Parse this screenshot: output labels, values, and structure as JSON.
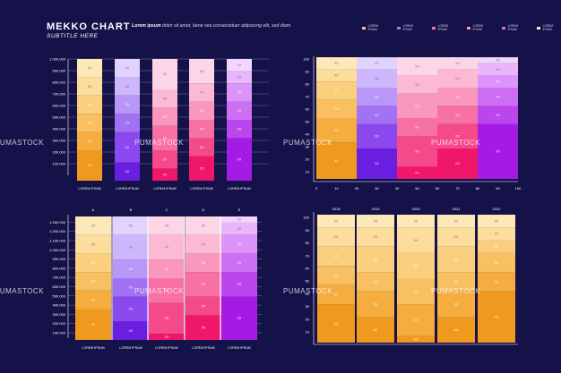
{
  "header": {
    "title": "MEKKO CHART",
    "subtitle": "SUBTITLE HERE",
    "desc_lead": "Lorem ipsum",
    "desc_rest": "dolor sit amet, bene sea consectetuer adipiscing elit, sed diam.",
    "legend": [
      "LOREM IPSUM",
      "LOREM IPSUM",
      "LOREM IPSUM",
      "LOREM IPSUM",
      "LOREM IPSUM",
      "LOREM IPSUM"
    ]
  },
  "watermark": "PUMASTOCK",
  "colors": {
    "background": "#15124a",
    "orange": [
      "#ef9a1e",
      "#f4ad3e",
      "#f8c060",
      "#fad07e",
      "#fcdd9b",
      "#fde8b8"
    ],
    "purple": [
      "#6a1fe0",
      "#8a48ee",
      "#a172f4",
      "#b997f8",
      "#cdb6fb",
      "#e1d3fd"
    ],
    "pink": [
      "#f0166a",
      "#f54a8a",
      "#f871a4",
      "#fa97bd",
      "#fcb9d3",
      "#fdd6e6"
    ],
    "magenta": [
      "#a61ae6",
      "#bb46ee",
      "#cd6ff4",
      "#dc94f8",
      "#e9b6fb",
      "#f3d6fd"
    ]
  },
  "chart_data": [
    {
      "type": "bar",
      "variant": "stacked",
      "categories": [
        "LOREM IPSUM",
        "LOREM IPSUM",
        "LOREM IPSUM",
        "LOREM IPSUM",
        "LOREM IPSUM"
      ],
      "yticks": [
        "100.000",
        "200.000",
        "300.000",
        "400.000",
        "500.000",
        "600.000",
        "700.000",
        "800.000",
        "900.000",
        "1.000.000"
      ],
      "ylim": [
        0,
        1000000
      ],
      "segment_label": "XX",
      "bars": [
        {
          "palette": "orange",
          "segments": [
            250000,
            150000,
            150000,
            150000,
            150000,
            150000
          ]
        },
        {
          "palette": "purple",
          "segments": [
            150000,
            250000,
            150000,
            150000,
            150000,
            150000
          ]
        },
        {
          "palette": "pink",
          "segments": [
            100000,
            150000,
            200000,
            150000,
            150000,
            250000
          ]
        },
        {
          "palette": "pink",
          "segments": [
            200000,
            150000,
            150000,
            150000,
            150000,
            200000
          ]
        },
        {
          "palette": "magenta",
          "segments": [
            350000,
            150000,
            150000,
            150000,
            100000,
            100000
          ]
        }
      ]
    },
    {
      "type": "bar",
      "variant": "mekko",
      "xticks": [
        "0",
        "10",
        "20",
        "30",
        "40",
        "50",
        "60",
        "70",
        "80",
        "90",
        "100"
      ],
      "yticks": [
        "10",
        "20",
        "30",
        "40",
        "50",
        "60",
        "70",
        "80",
        "90",
        "100"
      ],
      "segment_label": "XX",
      "columns": [
        {
          "palette": "orange",
          "x0": 0,
          "x1": 20,
          "segments": [
            30,
            20,
            15,
            15,
            10,
            10
          ]
        },
        {
          "palette": "purple",
          "x0": 20,
          "x1": 40,
          "segments": [
            25,
            20,
            15,
            15,
            15,
            10
          ]
        },
        {
          "palette": "pink",
          "x0": 40,
          "x1": 60,
          "segments": [
            10,
            25,
            15,
            20,
            15,
            15
          ]
        },
        {
          "palette": "pink",
          "x0": 60,
          "x1": 80,
          "segments": [
            25,
            20,
            15,
            15,
            15,
            10
          ]
        },
        {
          "palette": "magenta",
          "x0": 80,
          "x1": 100,
          "segments": [
            45,
            15,
            15,
            10,
            10,
            5
          ]
        }
      ]
    },
    {
      "type": "bar",
      "variant": "mekko-grouped",
      "top_labels": [
        "A",
        "B",
        "C",
        "D",
        "E"
      ],
      "categories": [
        "LOREM IPSUM",
        "LOREM IPSUM",
        "LOREM IPSUM",
        "LOREM IPSUM",
        "LOREM IPSUM"
      ],
      "yticks": [
        "100.000",
        "200.000",
        "300.000",
        "400.000",
        "500.000",
        "600.000",
        "700.000",
        "800.000",
        "900.000",
        "1.000.000",
        "1.100.000",
        "1.200.000",
        "1.300.000"
      ],
      "segment_label": "XX",
      "columns": [
        {
          "palette": "orange",
          "segments": [
            25,
            15,
            15,
            15,
            15,
            15
          ]
        },
        {
          "palette": "purple",
          "segments": [
            15,
            20,
            15,
            15,
            20,
            15
          ]
        },
        {
          "palette": "pink",
          "segments": [
            5,
            25,
            20,
            15,
            20,
            15
          ]
        },
        {
          "palette": "pink",
          "segments": [
            20,
            15,
            20,
            15,
            15,
            15
          ]
        },
        {
          "palette": "magenta",
          "segments": [
            35,
            20,
            15,
            15,
            10,
            5
          ]
        }
      ]
    },
    {
      "type": "bar",
      "variant": "stacked-percent",
      "top_labels": [
        "2018",
        "2019",
        "2020",
        "2021",
        "2022"
      ],
      "yticks": [
        "10",
        "20",
        "30",
        "40",
        "50",
        "60",
        "70",
        "80",
        "90",
        "100"
      ],
      "segment_label": "XX",
      "columns": [
        {
          "palette": "orange",
          "segments": [
            30,
            15,
            15,
            15,
            15,
            10
          ]
        },
        {
          "palette": "orange",
          "segments": [
            20,
            20,
            15,
            20,
            15,
            10
          ]
        },
        {
          "palette": "orange",
          "segments": [
            5,
            25,
            20,
            20,
            20,
            10
          ]
        },
        {
          "palette": "orange",
          "segments": [
            20,
            20,
            15,
            20,
            15,
            10
          ]
        },
        {
          "palette": "orange",
          "segments": [
            40,
            15,
            15,
            10,
            10,
            10
          ]
        }
      ]
    }
  ]
}
